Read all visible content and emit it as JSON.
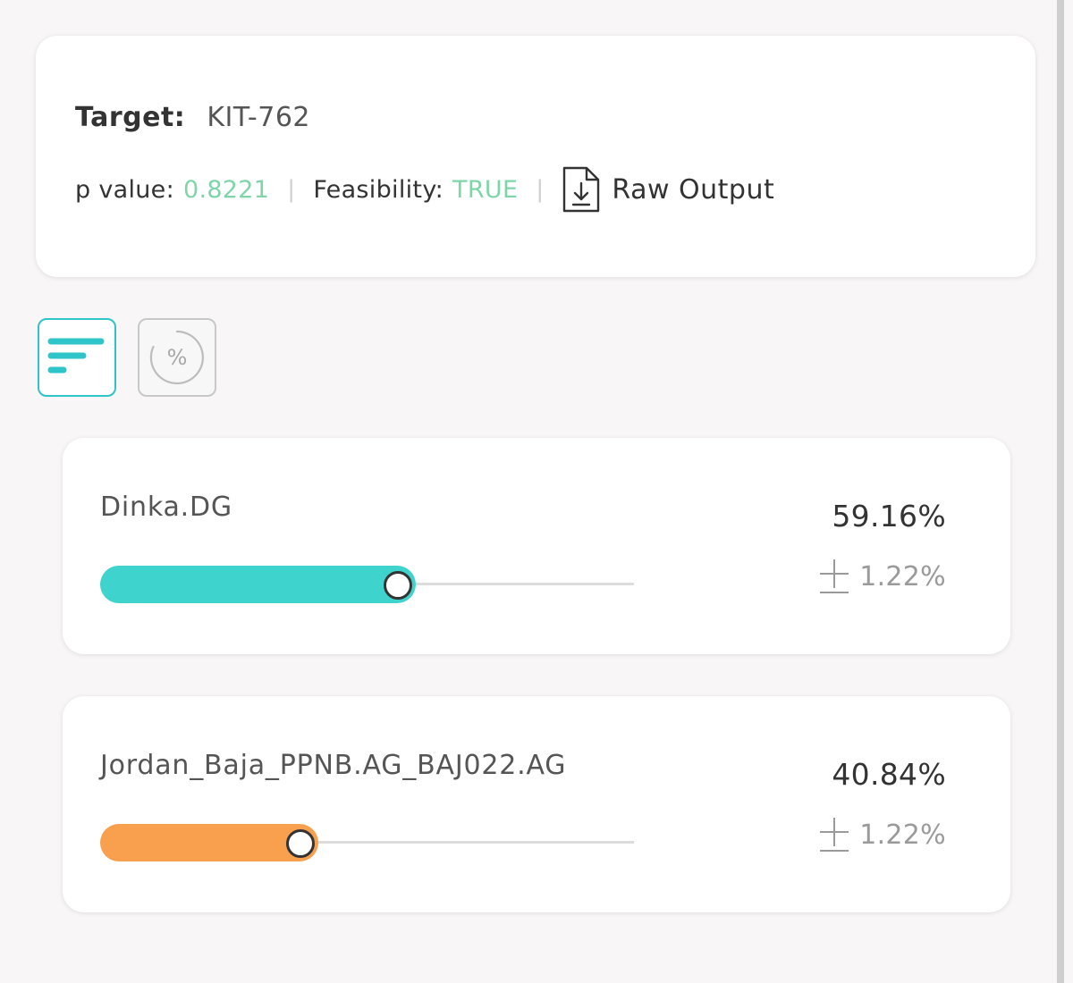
{
  "summary": {
    "target_label": "Target:",
    "target_value": "KIT-762",
    "p_value_label": "p value:",
    "p_value": "0.8221",
    "separator": "|",
    "feasibility_label": "Feasibility:",
    "feasibility_value": "TRUE",
    "raw_output_label": "Raw Output"
  },
  "view_toggles": {
    "active": "bars",
    "percent_symbol": "%"
  },
  "colors": {
    "accent_teal": "#2ec4c8",
    "value_green": "#7ed6a8",
    "series_1": "#3ed3cc",
    "series_2": "#f9a04f"
  },
  "results": [
    {
      "name": "Dinka.DG",
      "percent_text": "59.16%",
      "fraction": 0.5916,
      "error_text": "1.22%",
      "color": "#3ed3cc"
    },
    {
      "name": "Jordan_Baja_PPNB.AG_BAJ022.AG",
      "percent_text": "40.84%",
      "fraction": 0.4084,
      "error_text": "1.22%",
      "color": "#f9a04f"
    }
  ]
}
